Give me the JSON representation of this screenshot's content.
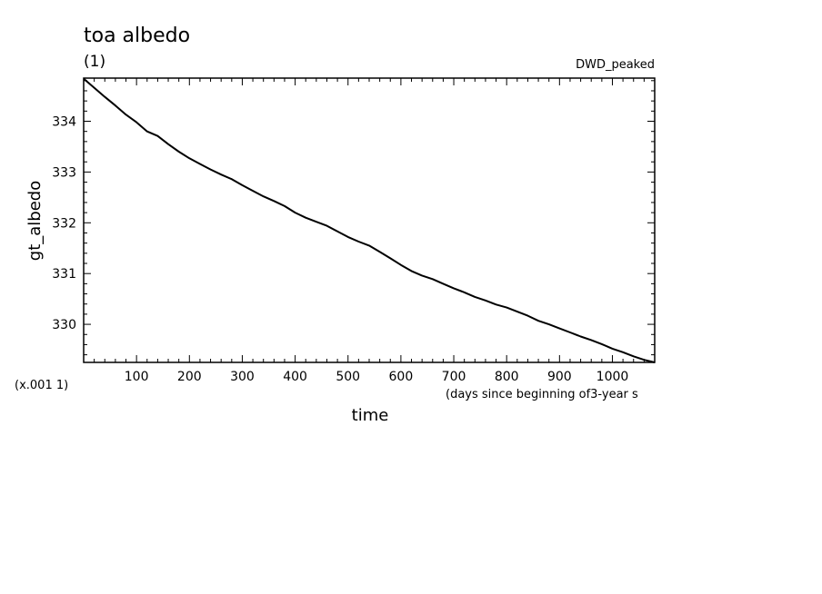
{
  "chart_data": {
    "type": "line",
    "title": "toa albedo",
    "subtitle": "(1)",
    "run_label": "DWD_peaked",
    "ylabel": "gt_albedo",
    "y_scale_note": "(x.001 1)",
    "xlabel": "time",
    "x_unit_note": "(days since beginning of3-year s",
    "xlim": [
      0,
      1080
    ],
    "ylim": [
      329.25,
      334.85
    ],
    "x_ticks": [
      100,
      200,
      300,
      400,
      500,
      600,
      700,
      800,
      900,
      1000
    ],
    "y_ticks": [
      330,
      331,
      332,
      333,
      334
    ],
    "grid": false,
    "series": [
      {
        "color": "#000000",
        "x": [
          0,
          20,
          40,
          60,
          80,
          100,
          120,
          140,
          160,
          180,
          200,
          220,
          240,
          260,
          280,
          300,
          320,
          340,
          360,
          380,
          400,
          420,
          440,
          460,
          480,
          500,
          520,
          540,
          560,
          580,
          600,
          620,
          640,
          660,
          680,
          700,
          720,
          740,
          760,
          780,
          800,
          820,
          840,
          860,
          880,
          900,
          920,
          940,
          960,
          980,
          1000,
          1020,
          1040,
          1060,
          1080
        ],
        "y": [
          334.84,
          334.66,
          334.48,
          334.31,
          334.13,
          333.98,
          333.8,
          333.71,
          333.55,
          333.4,
          333.27,
          333.16,
          333.05,
          332.95,
          332.86,
          332.74,
          332.63,
          332.52,
          332.43,
          332.33,
          332.2,
          332.1,
          332.02,
          331.94,
          331.83,
          331.72,
          331.63,
          331.55,
          331.43,
          331.3,
          331.17,
          331.05,
          330.96,
          330.89,
          330.8,
          330.71,
          330.63,
          330.54,
          330.47,
          330.39,
          330.33,
          330.25,
          330.17,
          330.07,
          330.0,
          329.92,
          329.84,
          329.76,
          329.69,
          329.61,
          329.52,
          329.45,
          329.37,
          329.3,
          329.25
        ]
      }
    ]
  }
}
